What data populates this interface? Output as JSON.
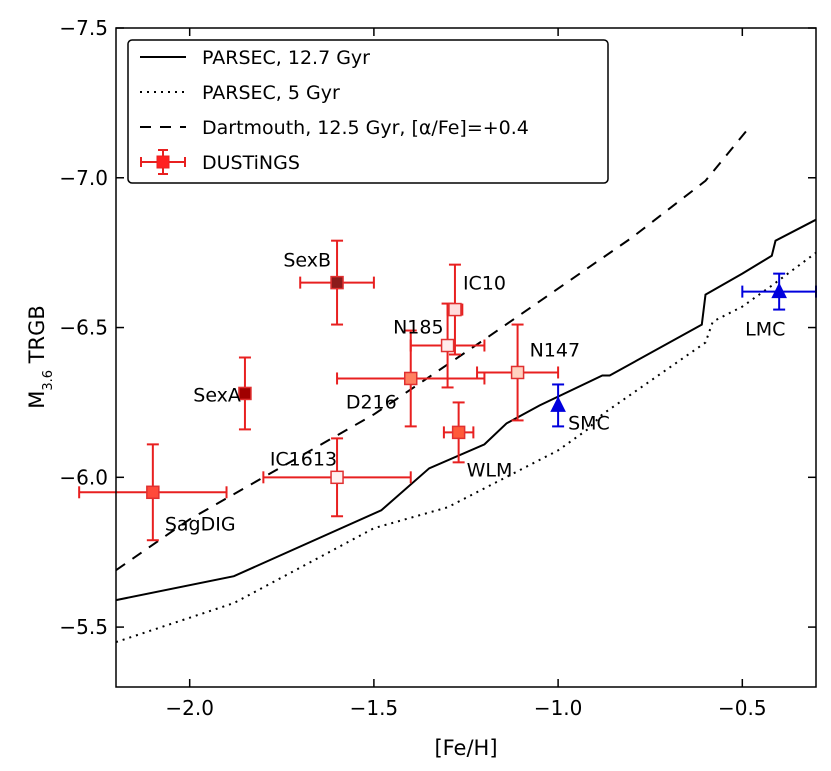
{
  "chart_data": {
    "type": "scatter",
    "xlabel": "[Fe/H]",
    "ylabel": "M3.6 TRGB",
    "xlim": [
      -2.2,
      -0.3
    ],
    "ylim": [
      -5.3,
      -7.5
    ],
    "x_ticks": [
      -2.0,
      -1.5,
      -1.0,
      -0.5
    ],
    "x_tick_labels": [
      "−2.0",
      "−1.5",
      "−1.0",
      "−0.5"
    ],
    "y_ticks": [
      -7.5,
      -7.0,
      -6.5,
      -6.0,
      -5.5
    ],
    "y_tick_labels": [
      "−7.5",
      "−7.0",
      "−6.5",
      "−6.0",
      "−5.5"
    ],
    "legend": {
      "placement": "top-left",
      "entries": [
        {
          "label": "PARSEC, 12.7 Gyr",
          "style": "solid"
        },
        {
          "label": "PARSEC, 5 Gyr",
          "style": "dotted"
        },
        {
          "label": "Dartmouth, 12.5 Gyr, [α/Fe]=+0.4",
          "style": "dashed"
        },
        {
          "label": "DUSTiNGS",
          "style": "marker"
        }
      ]
    },
    "lines": [
      {
        "name": "PARSEC, 12.7 Gyr",
        "style": "solid",
        "x": [
          -2.2,
          -1.88,
          -1.48,
          -1.35,
          -1.2,
          -1.14,
          -1.05,
          -0.88,
          -0.86,
          -0.61,
          -0.6,
          -0.5,
          -0.42,
          -0.41,
          -0.3
        ],
        "y": [
          -5.59,
          -5.67,
          -5.89,
          -6.03,
          -6.11,
          -6.18,
          -6.24,
          -6.34,
          -6.34,
          -6.51,
          -6.61,
          -6.68,
          -6.74,
          -6.79,
          -6.86
        ]
      },
      {
        "name": "PARSEC, 5 Gyr",
        "style": "dotted",
        "x": [
          -2.2,
          -1.88,
          -1.5,
          -1.3,
          -1.0,
          -0.92,
          -0.88,
          -0.6,
          -0.58,
          -0.5,
          -0.42,
          -0.3
        ],
        "y": [
          -5.45,
          -5.58,
          -5.83,
          -5.9,
          -6.09,
          -6.16,
          -6.21,
          -6.45,
          -6.52,
          -6.57,
          -6.64,
          -6.75
        ]
      },
      {
        "name": "Dartmouth, 12.5 Gyr, [α/Fe]=+0.4",
        "style": "dashed",
        "x": [
          -2.2,
          -2.0,
          -1.5,
          -1.2,
          -1.0,
          -0.8,
          -0.6,
          -0.48
        ],
        "y": [
          -5.69,
          -5.86,
          -6.21,
          -6.46,
          -6.63,
          -6.8,
          -6.99,
          -7.17
        ]
      }
    ],
    "points": [
      {
        "label": "SexB",
        "x": -1.6,
        "y": -6.65,
        "xerr": 0.1,
        "yerr": 0.14,
        "fill": "#8b1a1a",
        "edge": "#e03030"
      },
      {
        "label": "IC10",
        "x": -1.28,
        "y": -6.56,
        "xerr": 0.02,
        "yerr": 0.15,
        "fill": "#ffdede",
        "edge": "#e03030"
      },
      {
        "label": "N185",
        "x": -1.3,
        "y": -6.44,
        "xerr": 0.1,
        "yerr": 0.14,
        "fill": "#ffecec",
        "edge": "#e03030"
      },
      {
        "label": "N147",
        "x": -1.11,
        "y": -6.35,
        "xerr": 0.11,
        "yerr": 0.16,
        "fill": "#ffd2c0",
        "edge": "#e03030"
      },
      {
        "label": "D216",
        "x": -1.4,
        "y": -6.33,
        "xerr": 0.2,
        "yerr": 0.16,
        "fill": "#ff8060",
        "edge": "#e03030"
      },
      {
        "label": "SexA",
        "x": -1.85,
        "y": -6.28,
        "xerr": 0.0,
        "yerr": 0.12,
        "fill": "#a00000",
        "edge": "#e03030"
      },
      {
        "label": "WLM",
        "x": -1.27,
        "y": -6.15,
        "xerr": 0.04,
        "yerr": 0.1,
        "fill": "#ff5a3a",
        "edge": "#e03030"
      },
      {
        "label": "IC1613",
        "x": -1.6,
        "y": -6.0,
        "xerr": 0.2,
        "yerr": 0.13,
        "fill": "#fff2f0",
        "edge": "#e03030"
      },
      {
        "label": "SagDIG",
        "x": -2.1,
        "y": -5.95,
        "xerr": 0.2,
        "yerr": 0.16,
        "fill": "#ff4a3a",
        "edge": "#e03030"
      }
    ],
    "reference_points": [
      {
        "label": "SMC",
        "x": -1.0,
        "y": -6.24,
        "xerr": 0.0,
        "yerr": 0.07,
        "color": "#0000dd"
      },
      {
        "label": "LMC",
        "x": -0.4,
        "y": -6.62,
        "xerr": 0.1,
        "yerr": 0.06,
        "color": "#0000dd"
      }
    ]
  }
}
